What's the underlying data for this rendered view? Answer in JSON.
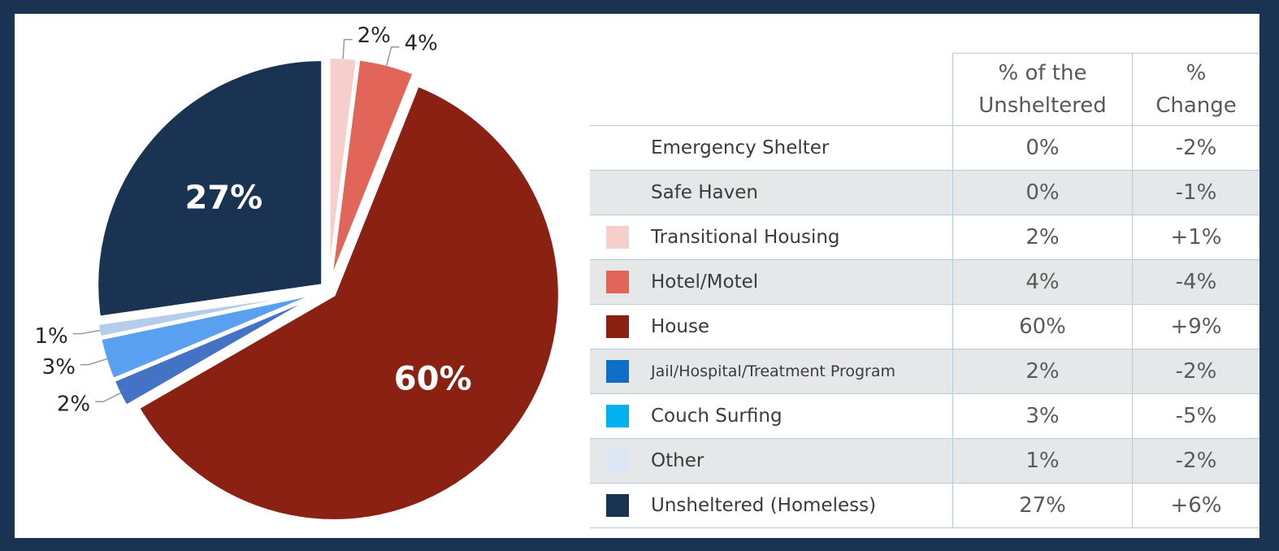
{
  "chart_data": {
    "type": "pie",
    "slices": [
      {
        "label": "Unsheltered (Homeless)",
        "value": 27,
        "display": "27%",
        "color": "#1a3352",
        "label_pos": "inside"
      },
      {
        "label": "Emergency Shelter",
        "value": 0,
        "display": "",
        "color": "#ffffff",
        "label_pos": "none"
      },
      {
        "label": "Safe Haven",
        "value": 0,
        "display": "",
        "color": "#ffffff",
        "label_pos": "none"
      },
      {
        "label": "Transitional Housing",
        "value": 2,
        "display": "2%",
        "color": "#f6cfcc",
        "label_pos": "outside"
      },
      {
        "label": "Hotel/Motel",
        "value": 4,
        "display": "4%",
        "color": "#e2655a",
        "label_pos": "outside"
      },
      {
        "label": "House",
        "value": 60,
        "display": "60%",
        "color": "#8b2113",
        "label_pos": "inside"
      },
      {
        "label": "Jail/Hospital/Treatment Program",
        "value": 2,
        "display": "2%",
        "color": "#4472c4",
        "label_pos": "outside"
      },
      {
        "label": "Couch Surfing",
        "value": 3,
        "display": "3%",
        "color": "#5aa0f0",
        "label_pos": "outside"
      },
      {
        "label": "Other",
        "value": 1,
        "display": "1%",
        "color": "#b4cdea",
        "label_pos": "outside"
      }
    ]
  },
  "table": {
    "headers": {
      "pct_unsheltered": "% of the\nUnsheltered",
      "pct_change": "%\nChange"
    },
    "rows": [
      {
        "category": "Emergency Shelter",
        "swatch": "",
        "pct": "0%",
        "change": "-2%"
      },
      {
        "category": "Safe Haven",
        "swatch": "",
        "pct": "0%",
        "change": "-1%"
      },
      {
        "category": "Transitional Housing",
        "swatch": "#f6cfcc",
        "pct": "2%",
        "change": "+1%"
      },
      {
        "category": "Hotel/Motel",
        "swatch": "#e2655a",
        "pct": "4%",
        "change": "-4%"
      },
      {
        "category": "House",
        "swatch": "#8b2113",
        "pct": "60%",
        "change": "+9%"
      },
      {
        "category": "Jail/Hospital/Treatment Program",
        "swatch": "#0f6fc6",
        "pct": "2%",
        "change": "-2%"
      },
      {
        "category": "Couch Surfing",
        "swatch": "#00b0f0",
        "pct": "3%",
        "change": "-5%"
      },
      {
        "category": "Other",
        "swatch": "#dde6f4",
        "pct": "1%",
        "change": "-2%"
      },
      {
        "category": "Unsheltered (Homeless)",
        "swatch": "#1a3352",
        "pct": "27%",
        "change": "+6%"
      }
    ]
  },
  "colors": {
    "frame": "#1a3352",
    "panel": "#ffffff",
    "row_alt": "#e6e7e8",
    "grid_line": "#b4cddd"
  }
}
